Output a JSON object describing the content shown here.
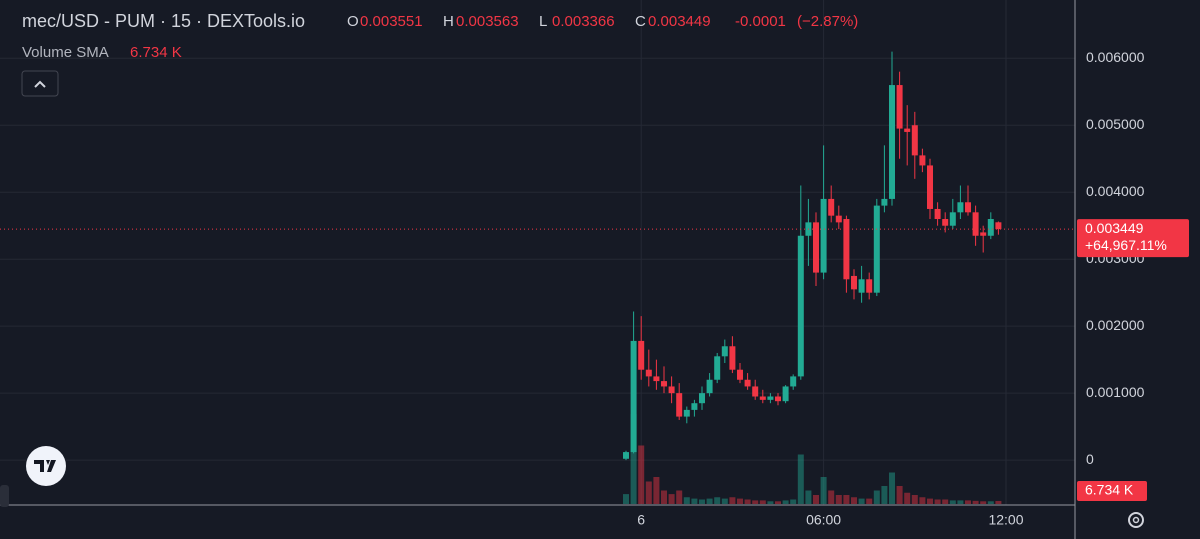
{
  "chart_data": {
    "type": "candlestick",
    "title": "mec/USD - PUM · 15 · DEXTools.io",
    "ohlc_legend": [
      {
        "label": "O",
        "value": 0.003551
      },
      {
        "label": "H",
        "value": 0.003563
      },
      {
        "label": "L",
        "value": 0.003366
      },
      {
        "label": "C",
        "value": 0.003449
      }
    ],
    "change": -0.0001,
    "change_pct": {
      "value": -2.87,
      "label": "(−2.87%)"
    },
    "volume_title": "Volume SMA",
    "volume_sma": {
      "value": 6.734,
      "label": "6.734 K"
    },
    "last_price": 0.003449,
    "last_change": {
      "value": 64967.11,
      "label": "+64,967.11%"
    },
    "categories": [
      null,
      null,
      "6",
      null,
      null,
      null,
      null,
      null,
      null,
      null,
      null,
      null,
      null,
      null,
      null,
      null,
      null,
      null,
      null,
      null,
      null,
      null,
      null,
      null,
      null,
      null,
      "06:00",
      null,
      null,
      null,
      null,
      null,
      null,
      null,
      null,
      null,
      null,
      null,
      null,
      null,
      null,
      null,
      null,
      null,
      null,
      null,
      null,
      null,
      null,
      null,
      "12:00"
    ],
    "open": [
      2e-05,
      0.00012,
      0.00178,
      0.00135,
      0.00125,
      0.00118,
      0.0011,
      0.001,
      0.00065,
      0.00075,
      0.00085,
      0.001,
      0.0012,
      0.00155,
      0.0017,
      0.00135,
      0.0012,
      0.0011,
      0.00095,
      0.0009,
      0.00095,
      0.00088,
      0.0011,
      0.00125,
      0.00335,
      0.00355,
      0.0028,
      0.0039,
      0.00365,
      0.0036,
      0.00275,
      0.0025,
      0.0027,
      0.0025,
      0.0038,
      0.0039,
      0.0056,
      0.00495,
      0.005,
      0.00455,
      0.0044,
      0.00375,
      0.0036,
      0.0035,
      0.0037,
      0.00385,
      0.0037,
      0.0034,
      0.00335,
      0.003551,
      null
    ],
    "high": [
      0.00014,
      0.00222,
      0.00215,
      0.00165,
      0.0015,
      0.0014,
      0.00125,
      0.00115,
      0.0008,
      0.0009,
      0.0011,
      0.0013,
      0.0016,
      0.0018,
      0.00185,
      0.00145,
      0.0013,
      0.0012,
      0.00105,
      0.001,
      0.001,
      0.00112,
      0.00128,
      0.0041,
      0.0039,
      0.0037,
      0.0047,
      0.0041,
      0.0038,
      0.00365,
      0.00285,
      0.0029,
      0.0028,
      0.0039,
      0.0047,
      0.0061,
      0.0058,
      0.0053,
      0.0052,
      0.00465,
      0.0045,
      0.00385,
      0.0037,
      0.0039,
      0.0041,
      0.0041,
      0.0038,
      0.0035,
      0.0037,
      0.003563,
      null
    ],
    "low": [
      0.0,
      0.0001,
      0.0012,
      0.0011,
      0.00105,
      0.001,
      0.00085,
      0.0006,
      0.00055,
      0.00065,
      0.00075,
      0.00095,
      0.00115,
      0.00145,
      0.0013,
      0.00115,
      0.00105,
      0.0009,
      0.00085,
      0.00085,
      0.00082,
      0.00085,
      0.00105,
      0.0012,
      0.0029,
      0.0026,
      0.0027,
      0.00355,
      0.00345,
      0.0025,
      0.0024,
      0.00235,
      0.0024,
      0.00245,
      0.0037,
      0.0038,
      0.0045,
      0.0044,
      0.0042,
      0.0043,
      0.0036,
      0.0035,
      0.0034,
      0.00345,
      0.0036,
      0.00365,
      0.0032,
      0.0031,
      0.0033,
      0.003366,
      null
    ],
    "close": [
      0.00012,
      0.00178,
      0.00135,
      0.00125,
      0.00118,
      0.0011,
      0.001,
      0.00065,
      0.00075,
      0.00085,
      0.001,
      0.0012,
      0.00155,
      0.0017,
      0.00135,
      0.0012,
      0.0011,
      0.00095,
      0.0009,
      0.00095,
      0.00088,
      0.0011,
      0.00125,
      0.00335,
      0.00355,
      0.0028,
      0.0039,
      0.00365,
      0.00355,
      0.0027,
      0.00255,
      0.0027,
      0.0025,
      0.0038,
      0.0039,
      0.0056,
      0.00495,
      0.0049,
      0.00455,
      0.0044,
      0.00375,
      0.0036,
      0.0035,
      0.0037,
      0.00385,
      0.0037,
      0.00335,
      0.00335,
      0.0036,
      0.003449,
      null
    ],
    "volume": [
      22,
      200,
      130,
      50,
      60,
      30,
      22,
      30,
      15,
      12,
      10,
      12,
      15,
      12,
      15,
      12,
      10,
      8,
      8,
      6,
      6,
      8,
      10,
      110,
      30,
      20,
      60,
      30,
      20,
      20,
      15,
      12,
      12,
      30,
      40,
      70,
      40,
      25,
      20,
      15,
      12,
      10,
      10,
      8,
      8,
      8,
      7,
      6,
      6,
      6.734,
      null
    ],
    "up_color": "#22ab94",
    "down_color": "#f23645",
    "ylim": [
      -0.00067,
      0.00687
    ],
    "yticks": [
      0,
      {
        "value": 0.001,
        "label": "0.001000"
      },
      {
        "value": 0.002,
        "label": "0.002000"
      },
      {
        "value": 0.003,
        "label": "0.003000"
      },
      {
        "value": 0.004,
        "label": "0.004000"
      },
      {
        "value": 0.005,
        "label": "0.005000"
      },
      {
        "value": 0.006,
        "label": "0.006000"
      }
    ],
    "grid": true
  }
}
